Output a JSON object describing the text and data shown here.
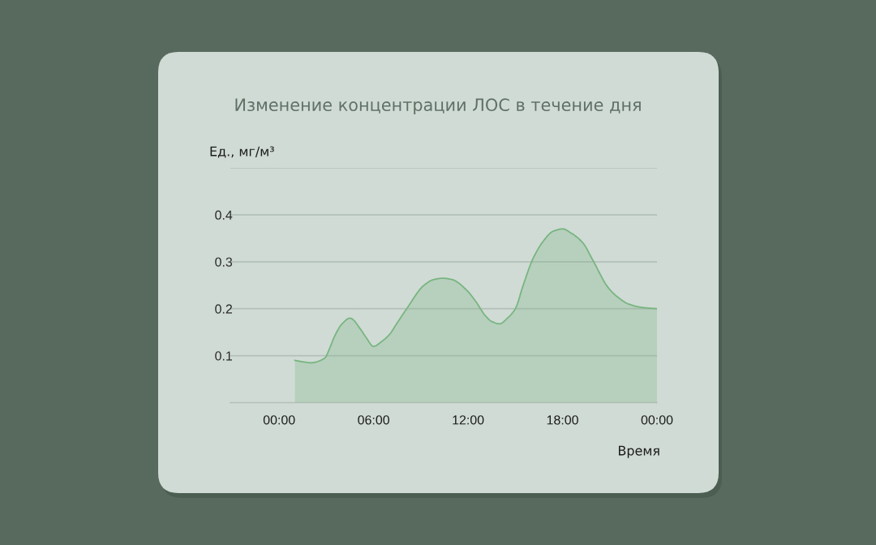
{
  "chart_data": {
    "type": "area",
    "title": "Изменение концентрации ЛОС в течение дня",
    "ylabel": "Ед., мг/м³",
    "xlabel": "Время",
    "x": [
      1,
      1.5,
      2,
      2.9,
      3.2,
      3.5,
      4,
      4.5,
      5.2,
      5.5,
      6,
      6.5,
      7,
      7.5,
      8.1,
      9.2,
      9.8,
      10.4,
      11,
      11.9,
      12.5,
      13.1,
      13.5,
      14,
      14.5,
      15,
      15.5,
      16.1,
      16.8,
      17.4,
      18,
      18.6,
      19.3,
      19.9,
      20.9,
      21.5,
      22.2,
      23,
      24
    ],
    "series": [
      {
        "color": "#78b580",
        "values": [
          0.09,
          0.087,
          0.085,
          0.095,
          0.115,
          0.14,
          0.168,
          0.18,
          0.155,
          0.14,
          0.12,
          0.13,
          0.145,
          0.17,
          0.2,
          0.25,
          0.262,
          0.265,
          0.262,
          0.24,
          0.215,
          0.185,
          0.173,
          0.168,
          0.18,
          0.2,
          0.25,
          0.305,
          0.345,
          0.365,
          0.37,
          0.36,
          0.34,
          0.305,
          0.245,
          0.225,
          0.21,
          0.203,
          0.2
        ]
      }
    ],
    "xlim": [
      -3.1,
      24
    ],
    "xticks": [
      {
        "value": 0,
        "label": "00:00"
      },
      {
        "value": 6,
        "label": "06:00"
      },
      {
        "value": 12,
        "label": "12:00"
      },
      {
        "value": 18,
        "label": "18:00"
      },
      {
        "value": 24,
        "label": "00:00"
      }
    ],
    "ylim": [
      0,
      0.5
    ],
    "yticks": [
      0.1,
      0.2,
      0.3,
      0.4,
      {
        "value": 0.5,
        "label": null
      }
    ],
    "grid": "y",
    "line_style": "solid"
  }
}
